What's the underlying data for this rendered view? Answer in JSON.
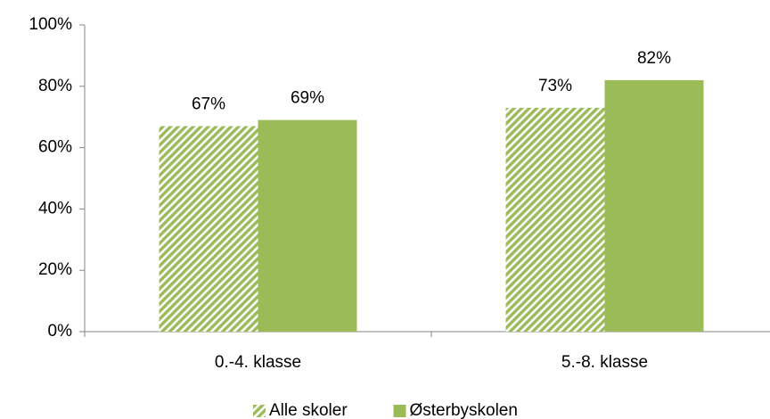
{
  "chart_data": {
    "type": "bar",
    "categories": [
      "0.-4. klasse",
      "5.-8. klasse"
    ],
    "series": [
      {
        "name": "Alle skoler",
        "color": "#9bbb59",
        "pattern": "hatch",
        "values": [
          67,
          73
        ],
        "value_labels": [
          "67%",
          "73%"
        ]
      },
      {
        "name": "Østerbyskolen",
        "color": "#9bbb59",
        "pattern": "solid",
        "values": [
          69,
          82
        ],
        "value_labels": [
          "69%",
          "82%"
        ]
      }
    ],
    "ylim": [
      0,
      100
    ],
    "yticks": [
      {
        "value": 0,
        "label": "0%"
      },
      {
        "value": 20,
        "label": "20%"
      },
      {
        "value": 40,
        "label": "40%"
      },
      {
        "value": 60,
        "label": "60%"
      },
      {
        "value": 80,
        "label": "80%"
      },
      {
        "value": 100,
        "label": "100%"
      }
    ],
    "grid": false,
    "legend": "bottom"
  }
}
